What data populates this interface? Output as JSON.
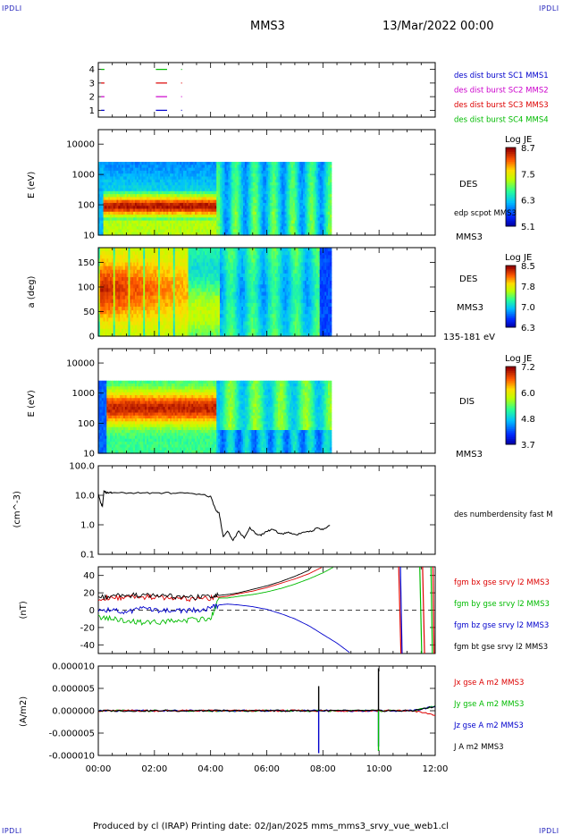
{
  "header": {
    "corner_label": "IPDLI",
    "mission": "MMS3",
    "date": "13/Mar/2022 00:00"
  },
  "footer": {
    "text": "Produced by cl (IRAP)   Printing date: 02/Jan/2025   mms_mms3_srvy_vue_web1.cl"
  },
  "colors": {
    "mms1": "#0000cc",
    "mms2": "#cc00cc",
    "mms3": "#dd0000",
    "mms4": "#00bb00",
    "black": "#000000"
  },
  "chart_data": [
    {
      "id": "burst",
      "type": "scatter",
      "ylim": [
        0.5,
        4.5
      ],
      "yticks": [
        "1",
        "2",
        "3",
        "4"
      ],
      "legend": [
        {
          "label": "des dist burst SC1 MMS1",
          "color": "#0000cc"
        },
        {
          "label": "des dist burst SC2 MMS2",
          "color": "#cc00cc"
        },
        {
          "label": "des dist burst SC3 MMS3",
          "color": "#dd0000"
        },
        {
          "label": "des dist burst SC4 MMS4",
          "color": "#00bb00"
        }
      ],
      "segments": [
        {
          "sc": 4,
          "color": "#00bb00",
          "t": [
            [
              0.1,
              0.22
            ],
            [
              2.05,
              2.45
            ],
            [
              2.95,
              2.98
            ]
          ]
        },
        {
          "sc": 3,
          "color": "#dd0000",
          "t": [
            [
              0.1,
              0.22
            ],
            [
              2.05,
              2.45
            ],
            [
              2.95,
              2.98
            ]
          ]
        },
        {
          "sc": 2,
          "color": "#cc00cc",
          "t": [
            [
              0.1,
              0.22
            ],
            [
              2.05,
              2.45
            ],
            [
              2.95,
              2.98
            ]
          ]
        },
        {
          "sc": 1,
          "color": "#0000cc",
          "t": [
            [
              0.1,
              0.22
            ],
            [
              2.05,
              2.45
            ],
            [
              2.95,
              2.98
            ]
          ]
        }
      ]
    },
    {
      "id": "des_energy",
      "type": "heatmap",
      "ylabel": "E (eV)",
      "yscale": "log",
      "ylim": [
        10,
        30000
      ],
      "yticks": [
        "10",
        "100",
        "1000",
        "10000"
      ],
      "right_labels": [
        "DES",
        "edp scpot MMS3",
        "MMS3"
      ],
      "colorbar": {
        "title": "Log JE",
        "ticks": [
          "8.7",
          "7.5",
          "6.3",
          "5.1"
        ],
        "range": [
          5.1,
          8.7
        ]
      }
    },
    {
      "id": "des_pitch",
      "type": "heatmap",
      "ylabel": "a (deg)",
      "ylim": [
        0,
        180
      ],
      "yticks": [
        "0",
        "50",
        "100",
        "150"
      ],
      "right_labels": [
        "DES",
        "MMS3",
        "135-181 eV"
      ],
      "colorbar": {
        "title": "Log JE",
        "ticks": [
          "8.5",
          "7.8",
          "7.0",
          "6.3"
        ],
        "range": [
          6.3,
          8.5
        ]
      }
    },
    {
      "id": "dis_energy",
      "type": "heatmap",
      "ylabel": "E (eV)",
      "yscale": "log",
      "ylim": [
        10,
        30000
      ],
      "yticks": [
        "10",
        "100",
        "1000",
        "10000"
      ],
      "right_labels": [
        "DIS",
        "MMS3"
      ],
      "colorbar": {
        "title": "Log JE",
        "ticks": [
          "7.2",
          "6.0",
          "4.8",
          "3.7"
        ],
        "range": [
          3.7,
          7.2
        ]
      }
    },
    {
      "id": "density",
      "type": "line",
      "ylabel": "(cm^-3)",
      "yscale": "log",
      "ylim": [
        0.1,
        100
      ],
      "yticks": [
        "0.1",
        "1.0",
        "10.0",
        "100.0"
      ],
      "legend": [
        {
          "label": "des numberdensity fast M",
          "color": "#000000"
        }
      ],
      "series": [
        {
          "name": "des numberdensity fast M",
          "color": "#000000",
          "x": [
            0.0,
            0.1,
            0.15,
            0.2,
            0.3,
            0.4,
            0.5,
            1.0,
            1.5,
            2.0,
            2.5,
            3.0,
            3.5,
            3.8,
            4.0,
            4.2,
            4.3,
            4.45,
            4.6,
            4.8,
            5.0,
            5.2,
            5.4,
            5.6,
            5.8,
            6.0,
            6.2,
            6.4,
            6.6,
            6.8,
            7.0,
            7.3,
            7.6,
            7.8,
            8.0,
            8.3
          ],
          "y": [
            12,
            5,
            4.5,
            14,
            12,
            12.5,
            12,
            12,
            12,
            12,
            12,
            11.8,
            11,
            10,
            9,
            3,
            2.5,
            0.4,
            0.6,
            0.3,
            0.6,
            0.35,
            0.8,
            0.5,
            0.45,
            0.6,
            0.7,
            0.55,
            0.5,
            0.55,
            0.45,
            0.55,
            0.6,
            0.8,
            0.7,
            1.0
          ]
        }
      ]
    },
    {
      "id": "magnetic_field",
      "type": "line",
      "ylabel": "(nT)",
      "ylim": [
        -50,
        50
      ],
      "yticks": [
        "-40",
        "-20",
        "0",
        "20",
        "40"
      ],
      "legend": [
        {
          "label": "fgm bx gse srvy l2 MMS3",
          "color": "#dd0000"
        },
        {
          "label": "fgm by gse srvy l2 MMS3",
          "color": "#00bb00"
        },
        {
          "label": "fgm bz gse srvy l2 MMS3",
          "color": "#0000cc"
        },
        {
          "label": "fgm bt gse srvy l2 MMS3",
          "color": "#000000"
        }
      ],
      "series": [
        {
          "name": "bx",
          "color": "#dd0000",
          "x": [
            0,
            0.5,
            1,
            1.5,
            2,
            2.5,
            3,
            3.5,
            4,
            4.3,
            4.6,
            5,
            5.5,
            6,
            6.5,
            7,
            7.5,
            8.0
          ],
          "y": [
            14,
            14,
            15,
            15,
            15,
            14,
            13,
            13,
            14,
            15,
            16,
            19,
            22,
            26,
            31,
            36,
            42,
            50
          ]
        },
        {
          "name": "by",
          "color": "#00bb00",
          "x": [
            0,
            0.5,
            1,
            1.5,
            2,
            2.5,
            3,
            3.5,
            4,
            4.3,
            4.6,
            5,
            5.5,
            6,
            6.5,
            7,
            7.5,
            8.0,
            8.4
          ],
          "y": [
            -8,
            -10,
            -12,
            -14,
            -14,
            -13,
            -12,
            -11,
            -10,
            14,
            14,
            16,
            18,
            21,
            25,
            30,
            36,
            43,
            50
          ]
        },
        {
          "name": "bz",
          "color": "#0000cc",
          "x": [
            0,
            0.5,
            1,
            1.5,
            2,
            2.5,
            3,
            3.5,
            4,
            4.3,
            4.6,
            5,
            5.5,
            6,
            6.5,
            7,
            7.5,
            8,
            8.5,
            9.0
          ],
          "y": [
            1,
            0,
            -2,
            2,
            0,
            -1,
            -1,
            0,
            2,
            6,
            7,
            6,
            4,
            1,
            -4,
            -10,
            -18,
            -28,
            -38,
            -50
          ]
        },
        {
          "name": "bt",
          "color": "#000000",
          "x": [
            0,
            0.5,
            1,
            1.5,
            2,
            2.5,
            3,
            3.5,
            4,
            4.3,
            4.6,
            5,
            5.5,
            6,
            6.5,
            7,
            7.5,
            7.6
          ],
          "y": [
            15,
            16,
            17,
            17,
            17,
            16,
            15,
            15,
            17,
            17,
            18,
            20,
            24,
            28,
            33,
            39,
            46,
            50
          ]
        }
      ],
      "late_spikes": [
        {
          "color": "#dd0000",
          "x": [
            10.7,
            10.78
          ]
        },
        {
          "color": "#0000cc",
          "x": [
            10.76,
            10.82
          ]
        },
        {
          "color": "#00bb00",
          "x": [
            11.45,
            11.52
          ]
        },
        {
          "color": "#dd0000",
          "x": [
            11.55,
            11.62
          ]
        },
        {
          "color": "#00bb00",
          "x": [
            11.85,
            11.9
          ]
        },
        {
          "color": "#dd0000",
          "x": [
            11.92,
            11.96
          ]
        }
      ]
    },
    {
      "id": "current_density",
      "type": "line",
      "ylabel": "(A/m2)",
      "ylim": [
        -1e-05,
        1e-05
      ],
      "yticks": [
        "-0.000010",
        "-0.000005",
        "0.000000",
        "0.000005",
        "0.000010"
      ],
      "xlim": [
        0,
        12
      ],
      "xticks": [
        "00:00",
        "02:00",
        "04:00",
        "06:00",
        "08:00",
        "10:00",
        "12:00"
      ],
      "legend": [
        {
          "label": "Jx gse A m2 MMS3",
          "color": "#dd0000"
        },
        {
          "label": "Jy gse A m2 MMS3",
          "color": "#00bb00"
        },
        {
          "label": "Jz gse A m2 MMS3",
          "color": "#0000cc"
        },
        {
          "label": "J A m2 MMS3",
          "color": "#000000"
        }
      ],
      "spikes": [
        {
          "color": "#000000",
          "x": 7.85,
          "y": 5.5e-06
        },
        {
          "color": "#0000cc",
          "x": 7.85,
          "y": -9.5e-06
        },
        {
          "color": "#000000",
          "x": 9.98,
          "y": 9.5e-06
        },
        {
          "color": "#0000cc",
          "x": 9.98,
          "y": -8e-06
        },
        {
          "color": "#00bb00",
          "x": 9.98,
          "y": -9e-06
        }
      ]
    }
  ]
}
